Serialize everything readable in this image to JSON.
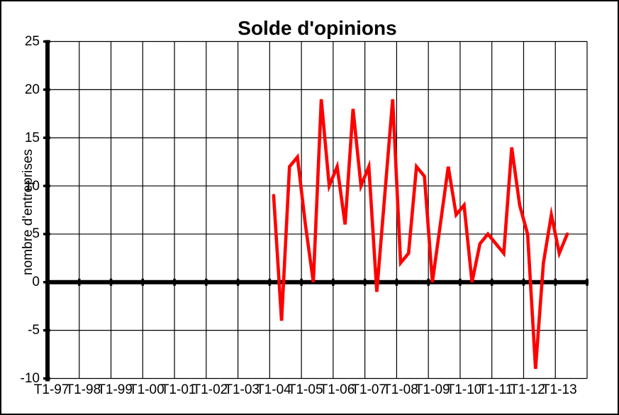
{
  "chart_data": {
    "type": "line",
    "title": "Solde d'opinions",
    "ylabel": "nombre d'entreprises",
    "xlabel": "",
    "x_labels": [
      "T1-97",
      "T1-98",
      "T1-99",
      "T1-00",
      "T1-01",
      "T1-02",
      "T1-03",
      "T1-04",
      "T1-05",
      "T1-06",
      "T1-07",
      "T1-08",
      "T1-09",
      "T1-10",
      "T1-11",
      "T1-12",
      "T1-13"
    ],
    "quarters_per_label": 4,
    "x_total_quarters": 68,
    "y_ticks": [
      25,
      20,
      15,
      10,
      5,
      0,
      -5,
      -10
    ],
    "ylim": [
      -10,
      25
    ],
    "grid": true,
    "legend": "none",
    "line_color": "#ff0000",
    "axis_color": "#000000",
    "background_color": "#ffffff",
    "series": [
      {
        "name": "Solde d'opinions",
        "start_quarter_index_from_T1_97": 28,
        "points": [
          {
            "quarter": "T1-04",
            "value": 9
          },
          {
            "quarter": "T2-04",
            "value": -4
          },
          {
            "quarter": "T3-04",
            "value": 12
          },
          {
            "quarter": "T4-04",
            "value": 13
          },
          {
            "quarter": "T1-05",
            "value": 6
          },
          {
            "quarter": "T2-05",
            "value": 0
          },
          {
            "quarter": "T3-05",
            "value": 19
          },
          {
            "quarter": "T4-05",
            "value": 10
          },
          {
            "quarter": "T1-06",
            "value": 12
          },
          {
            "quarter": "T2-06",
            "value": 6
          },
          {
            "quarter": "T3-06",
            "value": 18
          },
          {
            "quarter": "T4-06",
            "value": 10
          },
          {
            "quarter": "T1-07",
            "value": 12
          },
          {
            "quarter": "T2-07",
            "value": -1
          },
          {
            "quarter": "T3-07",
            "value": 9
          },
          {
            "quarter": "T4-07",
            "value": 19
          },
          {
            "quarter": "T1-08",
            "value": 2
          },
          {
            "quarter": "T2-08",
            "value": 3
          },
          {
            "quarter": "T3-08",
            "value": 12
          },
          {
            "quarter": "T4-08",
            "value": 11
          },
          {
            "quarter": "T1-09",
            "value": 0
          },
          {
            "quarter": "T2-09",
            "value": 6
          },
          {
            "quarter": "T3-09",
            "value": 12
          },
          {
            "quarter": "T4-09",
            "value": 7
          },
          {
            "quarter": "T1-10",
            "value": 8
          },
          {
            "quarter": "T2-10",
            "value": 0
          },
          {
            "quarter": "T3-10",
            "value": 4
          },
          {
            "quarter": "T4-10",
            "value": 5
          },
          {
            "quarter": "T1-11",
            "value": 4
          },
          {
            "quarter": "T2-11",
            "value": 3
          },
          {
            "quarter": "T3-11",
            "value": 14
          },
          {
            "quarter": "T4-11",
            "value": 8
          },
          {
            "quarter": "T1-12",
            "value": 5
          },
          {
            "quarter": "T2-12",
            "value": -9
          },
          {
            "quarter": "T3-12",
            "value": 2
          },
          {
            "quarter": "T4-12",
            "value": 7
          },
          {
            "quarter": "T1-13",
            "value": 3
          },
          {
            "quarter": "T2-13",
            "value": 5
          }
        ]
      }
    ]
  }
}
